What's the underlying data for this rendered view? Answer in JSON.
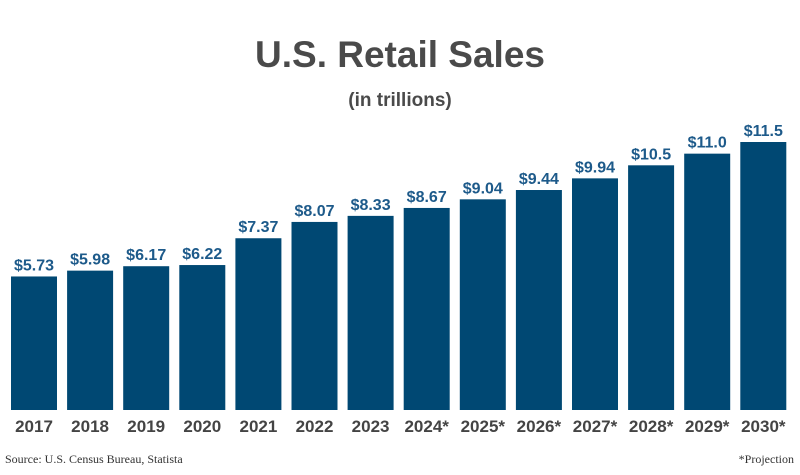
{
  "chart_data": {
    "type": "bar",
    "title": "U.S. Retail Sales",
    "subtitle": "(in trillions)",
    "categories": [
      "2017",
      "2018",
      "2019",
      "2020",
      "2021",
      "2022",
      "2023",
      "2024*",
      "2025*",
      "2026*",
      "2027*",
      "2028*",
      "2029*",
      "2030*"
    ],
    "values": [
      5.73,
      5.98,
      6.17,
      6.22,
      7.37,
      8.07,
      8.33,
      8.67,
      9.04,
      9.44,
      9.94,
      10.5,
      11.0,
      11.5
    ],
    "data_labels": [
      "$5.73",
      "$5.98",
      "$6.17",
      "$6.22",
      "$7.37",
      "$8.07",
      "$8.33",
      "$8.67",
      "$9.04",
      "$9.44",
      "$9.94",
      "$10.5",
      "$11.0",
      "$11.5"
    ],
    "ylim": [
      0,
      11.5
    ],
    "grid": false,
    "colors": {
      "bar": "#004873",
      "label": "#1d5a8a",
      "axis_text": "#444444"
    }
  },
  "source": "Source: U.S. Census Bureau, Statista",
  "note": "*Projection"
}
